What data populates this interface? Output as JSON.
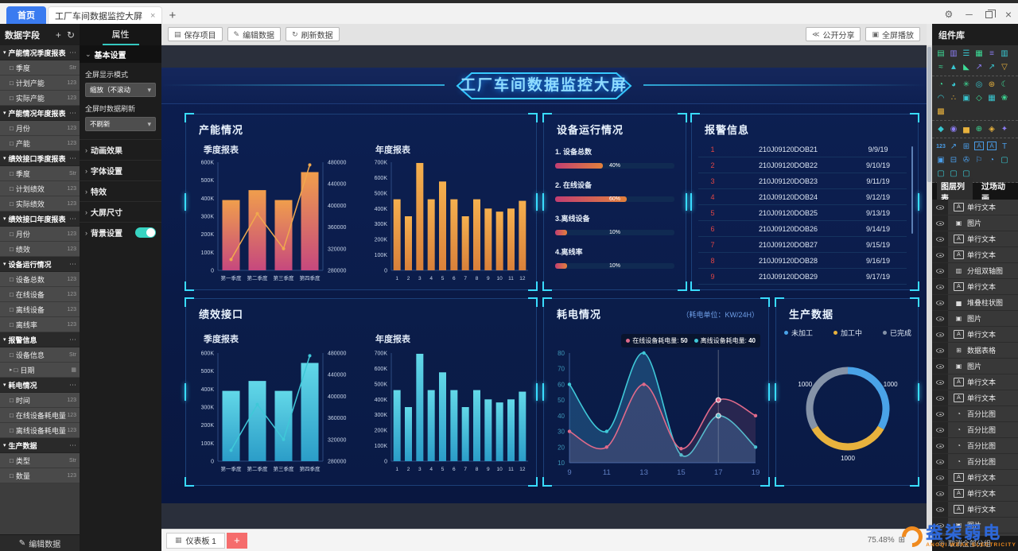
{
  "window": {
    "tabs": [
      {
        "label": "首页"
      },
      {
        "label": "工厂车间数据监控大屏",
        "close": "×"
      }
    ],
    "new_tab": "+"
  },
  "left_fields": {
    "title": "数据字段",
    "add_icon": "+",
    "refresh_icon": "↻",
    "edit_button": "编辑数据",
    "groups": [
      {
        "name": "产能情况季度报表",
        "fields": [
          {
            "label": "季度",
            "type": "Str"
          },
          {
            "label": "计划产能",
            "type": "123"
          },
          {
            "label": "实际产能",
            "type": "123"
          }
        ]
      },
      {
        "name": "产能情况年度报表",
        "fields": [
          {
            "label": "月份",
            "type": "123"
          },
          {
            "label": "产能",
            "type": "123"
          }
        ]
      },
      {
        "name": "绩效接口季度报表",
        "fields": [
          {
            "label": "季度",
            "type": "Str"
          },
          {
            "label": "计划绩效",
            "type": "123"
          },
          {
            "label": "实际绩效",
            "type": "123"
          }
        ]
      },
      {
        "name": "绩效接口年度报表",
        "fields": [
          {
            "label": "月份",
            "type": "123"
          },
          {
            "label": "绩效",
            "type": "123"
          }
        ]
      },
      {
        "name": "设备运行情况",
        "fields": [
          {
            "label": "设备总数",
            "type": "123"
          },
          {
            "label": "在线设备",
            "type": "123"
          },
          {
            "label": "离线设备",
            "type": "123"
          },
          {
            "label": "离线率",
            "type": "123"
          }
        ]
      },
      {
        "name": "报警信息",
        "fields": [
          {
            "label": "设备信息",
            "type": "Str"
          },
          {
            "label": "日期",
            "type": "cal",
            "expandable": true
          }
        ]
      },
      {
        "name": "耗电情况",
        "fields": [
          {
            "label": "时间",
            "type": "123"
          },
          {
            "label": "在线设备耗电量",
            "type": "123"
          },
          {
            "label": "离线设备耗电量",
            "type": "123"
          }
        ]
      },
      {
        "name": "生产数据",
        "fields": [
          {
            "label": "类型",
            "type": "Str"
          },
          {
            "label": "数量",
            "type": "123"
          }
        ]
      }
    ]
  },
  "properties": {
    "tab": "属性",
    "basic_header": "基本设置",
    "fields": [
      {
        "label": "全屏显示模式",
        "value": "缩放（不滚动"
      },
      {
        "label": "全屏时数据刷新",
        "value": "不刷新"
      }
    ],
    "collapsed_sections": [
      "动画效果",
      "字体设置",
      "特效",
      "大屏尺寸"
    ],
    "background_section": {
      "label": "背景设置",
      "toggle_on": true
    }
  },
  "toolbar": {
    "save": "保存项目",
    "edit": "编辑数据",
    "refresh": "刷新数据",
    "share": "公开分享",
    "fullscreen": "全屏播放"
  },
  "canvas": {
    "dashboard_title": "工厂车间数据监控大屏",
    "panels": [
      {
        "title": "产能情况"
      },
      {
        "title": "设备运行情况"
      },
      {
        "title": "报警信息"
      },
      {
        "title": "绩效接口"
      },
      {
        "title": "耗电情况"
      },
      {
        "title": "生产数据"
      }
    ]
  },
  "chart_data": [
    {
      "id": "capacity-quarterly",
      "type": "bar",
      "subtype": "bar+line-dual-axis",
      "title": "季度报表",
      "categories": [
        "第一季度",
        "第二季度",
        "第三季度",
        "第四季度"
      ],
      "bar_values": [
        390000,
        445000,
        390000,
        545000
      ],
      "line_values": [
        300000,
        385000,
        320000,
        475000
      ],
      "left_axis": {
        "min": 0,
        "max": 600000,
        "tick_labels": [
          "600K",
          "500K",
          "400K",
          "300K",
          "200K",
          "100K",
          "0"
        ]
      },
      "right_axis": {
        "min": 280000,
        "max": 480000,
        "tick_labels": [
          "480000",
          "440000",
          "400000",
          "360000",
          "320000",
          "280000"
        ]
      },
      "bar_gradient": [
        "#f09e4c",
        "#c6487e"
      ],
      "line_color": "#f0a84e",
      "grid": false
    },
    {
      "id": "capacity-annual",
      "type": "bar",
      "title": "年度报表",
      "categories": [
        "1",
        "2",
        "3",
        "4",
        "5",
        "6",
        "7",
        "8",
        "9",
        "10",
        "11",
        "12"
      ],
      "values": [
        460000,
        350000,
        695000,
        460000,
        575000,
        460000,
        350000,
        460000,
        400000,
        380000,
        400000,
        450000
      ],
      "ylim": [
        0,
        700000
      ],
      "tick_labels": [
        "700K",
        "600K",
        "500K",
        "400K",
        "300K",
        "200K",
        "100K",
        "0"
      ],
      "bar_gradient": [
        "#f5b04e",
        "#d9803a"
      ],
      "grid": false
    },
    {
      "id": "device-status",
      "type": "bar",
      "subtype": "progress-bars",
      "title": "设备运行情况",
      "items": [
        {
          "label": "1. 设备总数",
          "percent": 40
        },
        {
          "label": "2. 在线设备",
          "percent": 60
        },
        {
          "label": "3.离线设备",
          "percent": 10
        },
        {
          "label": "4.离线率",
          "percent": 10
        }
      ]
    },
    {
      "id": "alarm-table",
      "type": "table",
      "title": "报警信息",
      "rows": [
        [
          "1",
          "210J09120DOB21",
          "9/9/19"
        ],
        [
          "2",
          "210J09120DOB22",
          "9/10/19"
        ],
        [
          "3",
          "210J09120DOB23",
          "9/11/19"
        ],
        [
          "4",
          "210J09120DOB24",
          "9/12/19"
        ],
        [
          "5",
          "210J09120DOB25",
          "9/13/19"
        ],
        [
          "6",
          "210J09120DOB26",
          "9/14/19"
        ],
        [
          "7",
          "210J09120DOB27",
          "9/15/19"
        ],
        [
          "8",
          "210J09120DOB28",
          "9/16/19"
        ],
        [
          "9",
          "210J09120DOB29",
          "9/17/19"
        ]
      ]
    },
    {
      "id": "performance-quarterly",
      "type": "bar",
      "subtype": "bar+line-dual-axis",
      "title": "季度报表",
      "categories": [
        "第一季度",
        "第二季度",
        "第三季度",
        "第四季度"
      ],
      "bar_values": [
        390000,
        445000,
        390000,
        545000
      ],
      "line_values": [
        300000,
        385000,
        320000,
        475000
      ],
      "left_axis": {
        "min": 0,
        "max": 600000,
        "tick_labels": [
          "600K",
          "500K",
          "400K",
          "300K",
          "200K",
          "100K",
          "0"
        ]
      },
      "right_axis": {
        "min": 280000,
        "max": 480000,
        "tick_labels": [
          "480000",
          "440000",
          "400000",
          "360000",
          "320000",
          "280000"
        ]
      },
      "bar_gradient": [
        "#62d8e8",
        "#2b9dc8"
      ],
      "line_color": "#3fc8d8",
      "grid": false
    },
    {
      "id": "performance-annual",
      "type": "bar",
      "title": "年度报表",
      "categories": [
        "1",
        "2",
        "3",
        "4",
        "5",
        "6",
        "7",
        "8",
        "9",
        "10",
        "11",
        "12"
      ],
      "values": [
        460000,
        350000,
        695000,
        460000,
        575000,
        460000,
        350000,
        460000,
        400000,
        380000,
        400000,
        450000
      ],
      "ylim": [
        0,
        700000
      ],
      "tick_labels": [
        "700K",
        "600K",
        "500K",
        "400K",
        "300K",
        "200K",
        "100K",
        "0"
      ],
      "bar_gradient": [
        "#62d8e8",
        "#2b9dc8"
      ],
      "grid": false
    },
    {
      "id": "power-consumption",
      "type": "line",
      "title": "耗电情况",
      "unit_note": "（耗电单位：KW/24H）",
      "x": [
        "9",
        "11",
        "13",
        "15",
        "17",
        "19"
      ],
      "ylim": [
        10,
        80
      ],
      "tick_labels": [
        "80",
        "70",
        "60",
        "50",
        "40",
        "30",
        "20",
        "10"
      ],
      "series": [
        {
          "name": "在线设备耗电量",
          "color": "#e06a8a",
          "values": [
            30,
            20,
            60,
            19,
            50,
            40
          ]
        },
        {
          "name": "离线设备耗电量",
          "color": "#3fc8d8",
          "values": [
            60,
            30,
            80,
            15,
            40,
            20
          ]
        }
      ],
      "tooltip": {
        "at_x": "17",
        "items": [
          {
            "label": "在线设备耗电量:",
            "value": "50",
            "color": "#e06a8a"
          },
          {
            "label": "离线设备耗电量:",
            "value": "40",
            "color": "#3fc8d8"
          }
        ]
      },
      "legend_position": "top-right",
      "grid": false
    },
    {
      "id": "production-donut",
      "type": "pie",
      "title": "生产数据",
      "legend": [
        "未加工",
        "加工中",
        "已完成"
      ],
      "values": [
        1000,
        1000,
        1000
      ],
      "labels": [
        "1000",
        "1000",
        "1000"
      ],
      "colors": [
        "#4aa3e8",
        "#e8b23d",
        "#8593a8"
      ]
    }
  ],
  "components": {
    "title": "组件库",
    "tabs": [
      {
        "label": "图层列表",
        "active": true
      },
      {
        "label": "过场动画",
        "active": false
      }
    ],
    "icon_groups": [
      [
        {
          "n": "bar-horizontal-icon",
          "g": "▤",
          "c": "#3ddc97"
        },
        {
          "n": "column-chart-icon",
          "g": "▥",
          "c": "#8b7cf0"
        },
        {
          "n": "bar-list-icon",
          "g": "☰",
          "c": "#38c6d0"
        },
        {
          "n": "column-chart2-icon",
          "g": "▦",
          "c": "#3ddc97"
        },
        {
          "n": "list-chart-icon",
          "g": "≡",
          "c": "#8b7cf0"
        },
        {
          "n": "grouped-column-icon",
          "g": "▥",
          "c": "#38c6d0"
        },
        {
          "n": "line-chart-icon",
          "g": "≈",
          "c": "#3ddc97"
        },
        {
          "n": "area-chart-icon",
          "g": "▲",
          "c": "#38c6d0"
        },
        {
          "n": "area-chart2-icon",
          "g": "◣",
          "c": "#3ddc97"
        },
        {
          "n": "combo-chart-icon",
          "g": "↗",
          "c": "#8b7cf0"
        },
        {
          "n": "combo-chart2-icon",
          "g": "↗",
          "c": "#38c6d0"
        },
        {
          "n": "funnel-chart-icon",
          "g": "▽",
          "c": "#e8b23d"
        }
      ],
      [
        {
          "n": "pie-chart-icon",
          "g": "◔",
          "c": "#3ddc97"
        },
        {
          "n": "donut-chart-icon",
          "g": "◕",
          "c": "#38c6d0"
        },
        {
          "n": "rose-chart-icon",
          "g": "✳",
          "c": "#3ddc97"
        },
        {
          "n": "map-area-icon",
          "g": "◎",
          "c": "#38c6d0"
        },
        {
          "n": "scatter-pie-icon",
          "g": "⊛",
          "c": "#e8b23d"
        },
        {
          "n": "moon-chart-icon",
          "g": "☾",
          "c": "#3ddc97"
        },
        {
          "n": "gauge-chart-icon",
          "g": "◠",
          "c": "#38c6d0"
        },
        {
          "n": "scatter-chart-icon",
          "g": "∴",
          "c": "#e8b23d"
        },
        {
          "n": "photo-frame-icon",
          "g": "▣",
          "c": "#38c6d0"
        },
        {
          "n": "hexagon-chart-icon",
          "g": "◇",
          "c": "#3ddc97"
        },
        {
          "n": "treemap-icon",
          "g": "▦",
          "c": "#38c6d0"
        },
        {
          "n": "flower-chart-icon",
          "g": "❀",
          "c": "#3ddc97"
        },
        {
          "n": "heatmap-icon",
          "g": "▩",
          "c": "#e8b23d"
        }
      ],
      [
        {
          "n": "china-map-icon",
          "g": "◆",
          "c": "#38c6d0"
        },
        {
          "n": "world-map-icon",
          "g": "◉",
          "c": "#8b7cf0"
        },
        {
          "n": "bar-3d-icon",
          "g": "▅",
          "c": "#e8b23d"
        },
        {
          "n": "globe-icon",
          "g": "⊕",
          "c": "#3ddc97"
        },
        {
          "n": "cube-icon",
          "g": "◈",
          "c": "#e8b23d"
        },
        {
          "n": "puzzle-icon",
          "g": "✦",
          "c": "#8b7cf0"
        }
      ],
      [
        {
          "n": "number-123-icon",
          "g": "123",
          "c": "#4a9de8"
        },
        {
          "n": "trend-icon",
          "g": "↗",
          "c": "#4a9de8"
        },
        {
          "n": "data-table-icon",
          "g": "⊞",
          "c": "#4a9de8"
        },
        {
          "n": "text-a-icon",
          "g": "A",
          "c": "#4a9de8"
        },
        {
          "n": "textbox-icon",
          "g": "A",
          "c": "#4a9de8"
        },
        {
          "n": "text-icon",
          "g": "T",
          "c": "#4a9de8"
        },
        {
          "n": "image-icon",
          "g": "▣",
          "c": "#4a9de8"
        },
        {
          "n": "carousel-icon",
          "g": "⊟",
          "c": "#4a9de8"
        },
        {
          "n": "video-icon",
          "g": "✇",
          "c": "#4a9de8"
        },
        {
          "n": "flag-icon",
          "g": "⚐",
          "c": "#4a9de8"
        },
        {
          "n": "clock-icon",
          "g": "◔",
          "c": "#4a9de8"
        },
        {
          "n": "border-frame1-icon",
          "g": "▢",
          "c": "#38c6d0"
        },
        {
          "n": "border-frame2-icon",
          "g": "▢",
          "c": "#38c6d0"
        },
        {
          "n": "border-frame3-icon",
          "g": "▢",
          "c": "#38c6d0"
        },
        {
          "n": "border-frame4-icon",
          "g": "▢",
          "c": "#38c6d0"
        }
      ]
    ],
    "layers": [
      {
        "icon": "text",
        "label": "单行文本"
      },
      {
        "icon": "image",
        "label": "图片"
      },
      {
        "icon": "text",
        "label": "单行文本"
      },
      {
        "icon": "text",
        "label": "单行文本"
      },
      {
        "icon": "dualaxis",
        "label": "分组双轴图"
      },
      {
        "icon": "text",
        "label": "单行文本"
      },
      {
        "icon": "stacked",
        "label": "堆叠柱状图"
      },
      {
        "icon": "image",
        "label": "图片"
      },
      {
        "icon": "text",
        "label": "单行文本"
      },
      {
        "icon": "table",
        "label": "数据表格"
      },
      {
        "icon": "image",
        "label": "图片"
      },
      {
        "icon": "text",
        "label": "单行文本"
      },
      {
        "icon": "text",
        "label": "单行文本"
      },
      {
        "icon": "pct",
        "label": "百分比图"
      },
      {
        "icon": "pct",
        "label": "百分比图"
      },
      {
        "icon": "pct",
        "label": "百分比图"
      },
      {
        "icon": "pct",
        "label": "百分比图"
      },
      {
        "icon": "text",
        "label": "单行文本"
      },
      {
        "icon": "text",
        "label": "单行文本"
      },
      {
        "icon": "text",
        "label": "单行文本"
      },
      {
        "icon": "image",
        "label": "图片"
      }
    ],
    "footer_action": "取消全部分组"
  },
  "bottom_bar": {
    "dashboard_tab": "仪表板 1",
    "add": "+",
    "zoom": "75.48%"
  },
  "watermark": {
    "cn": "盎柒弱电",
    "en": "ANGQI WEAK ELECTRICITY"
  }
}
